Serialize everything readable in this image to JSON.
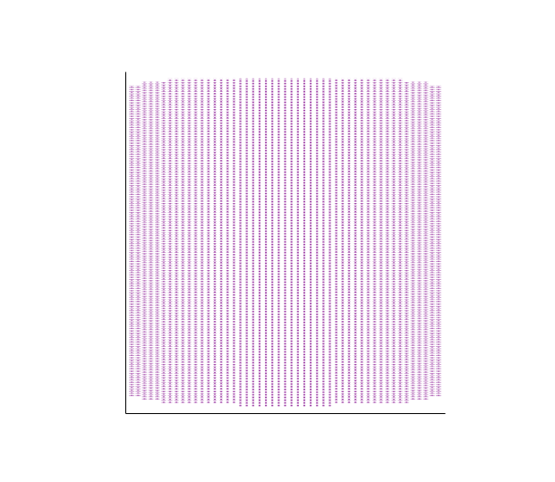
{
  "chart_data": {
    "type": "scatter",
    "color": "#93299c",
    "marker": "point",
    "tick_labels": false,
    "xlim": [
      0,
      1
    ],
    "ylim": [
      0,
      1
    ],
    "xticks": [],
    "yticks": [],
    "x": [
      0.02,
      0.04,
      0.06,
      0.08,
      0.1,
      0.12,
      0.14,
      0.16,
      0.18,
      0.2,
      0.22,
      0.24,
      0.26,
      0.28,
      0.3,
      0.32,
      0.34,
      0.36,
      0.38,
      0.4,
      0.42,
      0.44,
      0.46,
      0.48,
      0.5,
      0.52,
      0.54,
      0.56,
      0.58,
      0.6,
      0.62,
      0.64,
      0.66,
      0.68,
      0.7,
      0.72,
      0.74,
      0.76,
      0.78,
      0.8,
      0.82,
      0.84,
      0.86,
      0.88,
      0.9,
      0.92,
      0.94,
      0.96,
      0.98
    ],
    "ymin": [
      0.05,
      0.05,
      0.04,
      0.04,
      0.04,
      0.03,
      0.03,
      0.03,
      0.03,
      0.03,
      0.03,
      0.03,
      0.03,
      0.03,
      0.03,
      0.03,
      0.03,
      0.02,
      0.02,
      0.02,
      0.02,
      0.02,
      0.02,
      0.02,
      0.02,
      0.02,
      0.02,
      0.02,
      0.02,
      0.02,
      0.02,
      0.02,
      0.03,
      0.03,
      0.03,
      0.03,
      0.03,
      0.03,
      0.03,
      0.03,
      0.03,
      0.03,
      0.03,
      0.03,
      0.04,
      0.04,
      0.04,
      0.05,
      0.05
    ],
    "ymax": [
      0.96,
      0.96,
      0.97,
      0.97,
      0.97,
      0.97,
      0.98,
      0.98,
      0.98,
      0.98,
      0.98,
      0.98,
      0.98,
      0.98,
      0.98,
      0.98,
      0.98,
      0.98,
      0.98,
      0.98,
      0.98,
      0.98,
      0.98,
      0.98,
      0.98,
      0.98,
      0.98,
      0.98,
      0.98,
      0.98,
      0.98,
      0.98,
      0.98,
      0.98,
      0.98,
      0.98,
      0.98,
      0.98,
      0.98,
      0.98,
      0.98,
      0.98,
      0.98,
      0.97,
      0.97,
      0.97,
      0.97,
      0.96,
      0.96
    ]
  }
}
